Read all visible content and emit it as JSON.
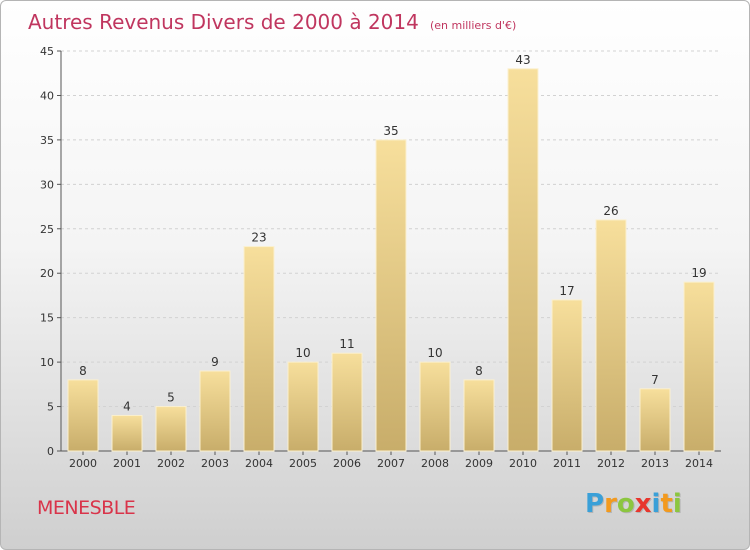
{
  "chart_data": {
    "type": "bar",
    "title": "Autres Revenus Divers de 2000 à 2014",
    "unit": "(en milliers d'€)",
    "categories": [
      "2000",
      "2001",
      "2002",
      "2003",
      "2004",
      "2005",
      "2006",
      "2007",
      "2008",
      "2009",
      "2010",
      "2011",
      "2012",
      "2013",
      "2014"
    ],
    "values": [
      8,
      4,
      5,
      9,
      23,
      10,
      11,
      35,
      10,
      8,
      43,
      17,
      26,
      7,
      19
    ],
    "ylim": [
      0,
      45
    ],
    "yticks": [
      0,
      5,
      10,
      15,
      20,
      25,
      30,
      35,
      40,
      45
    ],
    "grid": "horizontal-dashed",
    "bar_color_top": "#f7df9c",
    "bar_color_bottom": "#c8ad6a"
  },
  "footer": {
    "place": "MENESBLE",
    "logo_letters": [
      "P",
      "r",
      "o",
      "x",
      "i",
      "t",
      "i"
    ],
    "logo_colors": [
      "#3aa0d8",
      "#f39a1e",
      "#8cc63f",
      "#e8362d",
      "#3aa0d8",
      "#f39a1e",
      "#8cc63f"
    ]
  }
}
